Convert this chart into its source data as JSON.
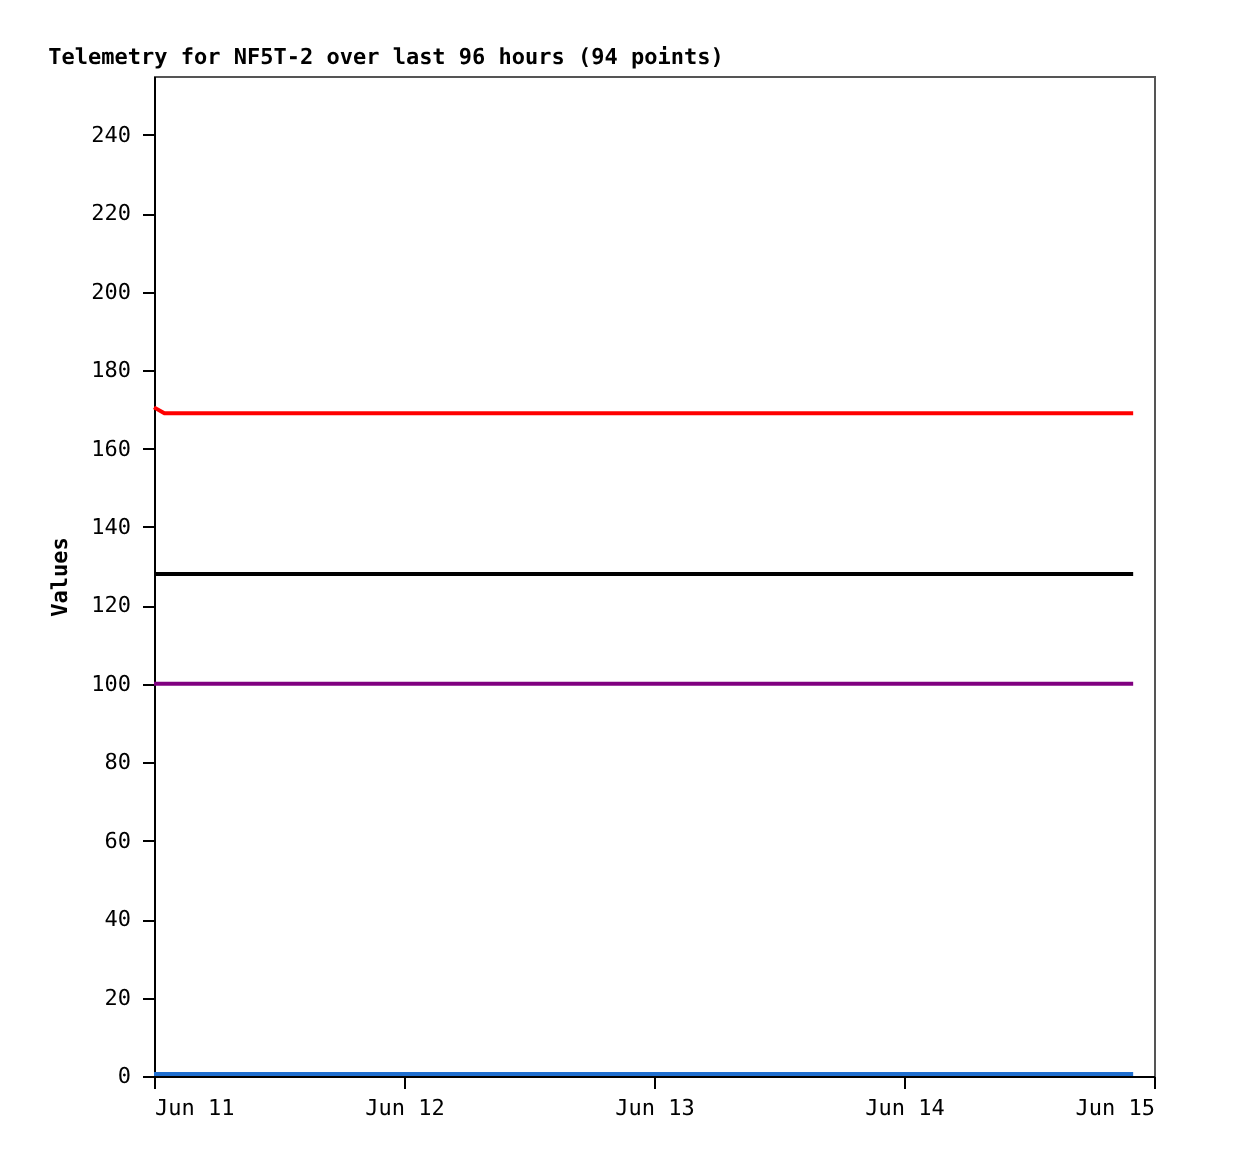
{
  "chart_data": {
    "type": "line",
    "title": "Telemetry for NF5T-2 over last 96 hours (94 points)",
    "ylabel": "Values",
    "xlim": [
      "--06-11T00:00",
      "--06-15T00:00"
    ],
    "xticks": [
      {
        "value": "--06-11",
        "label": "Jun 11"
      },
      {
        "value": "--06-12",
        "label": "Jun 12"
      },
      {
        "value": "--06-13",
        "label": "Jun 13"
      },
      {
        "value": "--06-14",
        "label": "Jun 14"
      },
      {
        "value": "--06-15",
        "label": "Jun 15"
      }
    ],
    "ylim": [
      0,
      255
    ],
    "yticks": [
      0,
      20,
      40,
      60,
      80,
      100,
      120,
      140,
      160,
      180,
      200,
      220,
      240
    ],
    "grid": false,
    "legend": false,
    "marker": "none",
    "line_style": "solid",
    "series": [
      {
        "color": "#ff0000",
        "x": [
          "--06-11T00:00",
          "--06-11T01:00",
          "--06-14T22:00"
        ],
        "values": [
          170.5,
          169,
          169
        ]
      },
      {
        "color": "#000000",
        "x": [
          "--06-11T00:00",
          "--06-14T22:00"
        ],
        "values": [
          128,
          128
        ]
      },
      {
        "color": "#800080",
        "x": [
          "--06-11T00:00",
          "--06-14T22:00"
        ],
        "values": [
          100,
          100
        ]
      },
      {
        "color": "#1f6fd0",
        "x": [
          "--06-11T00:00",
          "--06-14T22:00"
        ],
        "values": [
          0.5,
          0.5
        ]
      }
    ]
  }
}
